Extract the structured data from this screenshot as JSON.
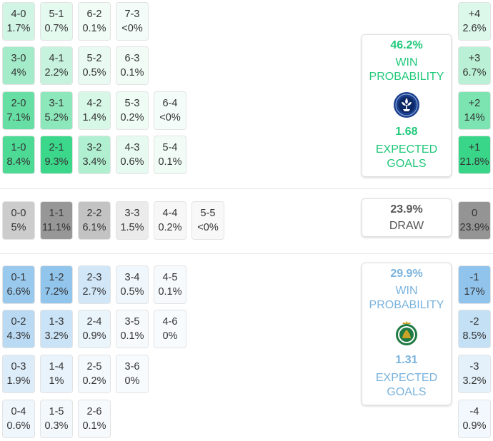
{
  "chart_data": {
    "type": "table",
    "home_wins": [
      [
        "4-0",
        "1.7%"
      ],
      [
        "5-1",
        "0.7%"
      ],
      [
        "6-2",
        "0.1%"
      ],
      [
        "7-3",
        "<0%"
      ],
      [
        "3-0",
        "4%"
      ],
      [
        "4-1",
        "2.2%"
      ],
      [
        "5-2",
        "0.5%"
      ],
      [
        "6-3",
        "0.1%"
      ],
      [
        "2-0",
        "7.1%"
      ],
      [
        "3-1",
        "5.2%"
      ],
      [
        "4-2",
        "1.4%"
      ],
      [
        "5-3",
        "0.2%"
      ],
      [
        "6-4",
        "<0%"
      ],
      [
        "1-0",
        "8.4%"
      ],
      [
        "2-1",
        "9.3%"
      ],
      [
        "3-2",
        "3.4%"
      ],
      [
        "4-3",
        "0.6%"
      ],
      [
        "5-4",
        "0.1%"
      ]
    ],
    "draws": [
      [
        "0-0",
        "5%"
      ],
      [
        "1-1",
        "11.1%"
      ],
      [
        "2-2",
        "6.1%"
      ],
      [
        "3-3",
        "1.5%"
      ],
      [
        "4-4",
        "0.2%"
      ],
      [
        "5-5",
        "<0%"
      ]
    ],
    "away_wins": [
      [
        "0-1",
        "6.6%"
      ],
      [
        "1-2",
        "7.2%"
      ],
      [
        "2-3",
        "2.7%"
      ],
      [
        "3-4",
        "0.5%"
      ],
      [
        "4-5",
        "0.1%"
      ],
      [
        "0-2",
        "4.3%"
      ],
      [
        "1-3",
        "3.2%"
      ],
      [
        "2-4",
        "0.9%"
      ],
      [
        "3-5",
        "0.1%"
      ],
      [
        "4-6",
        "0%"
      ],
      [
        "0-3",
        "1.9%"
      ],
      [
        "1-4",
        "1%"
      ],
      [
        "2-5",
        "0.2%"
      ],
      [
        "3-6",
        "0%"
      ],
      [
        "0-4",
        "0.6%"
      ],
      [
        "1-5",
        "0.3%"
      ],
      [
        "2-6",
        "0.1%"
      ]
    ],
    "margins": [
      [
        "+4",
        "2.6%"
      ],
      [
        "+3",
        "6.7%"
      ],
      [
        "+2",
        "14%"
      ],
      [
        "+1",
        "21.8%"
      ],
      [
        "0",
        "23.9%"
      ],
      [
        "-1",
        "17%"
      ],
      [
        "-2",
        "8.5%"
      ],
      [
        "-3",
        "3.2%"
      ],
      [
        "-4",
        "0.9%"
      ]
    ],
    "home": {
      "win_pct": "46.2%",
      "win_label": "WIN PROBABILITY",
      "xg": "1.68",
      "xg_label": "EXPECTED GOALS",
      "color": "#20c97a"
    },
    "draw": {
      "pct": "23.9%",
      "label": "DRAW"
    },
    "away": {
      "win_pct": "29.9%",
      "win_label": "WIN PROBABILITY",
      "xg": "1.31",
      "xg_label": "EXPECTED GOALS",
      "color": "#7ab3dd"
    }
  }
}
